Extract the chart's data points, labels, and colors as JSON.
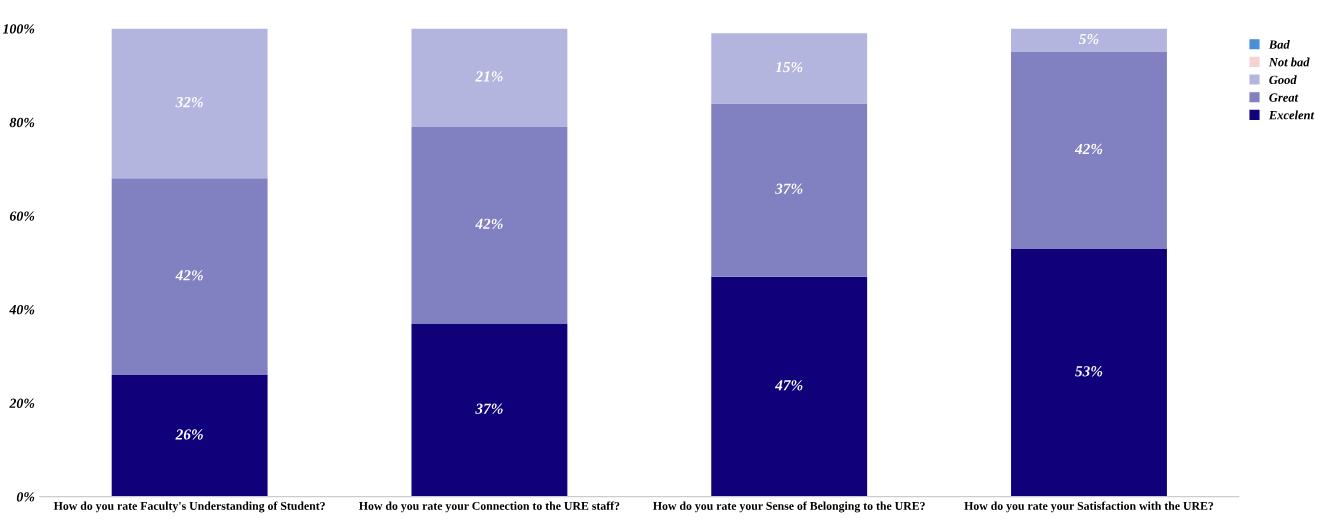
{
  "chart_data": {
    "type": "bar",
    "stacked": true,
    "categories": [
      "How do you rate Faculty's Understanding of Student?",
      "How do you rate your Connection to the URE staff?",
      "How do you rate your Sense of Belonging to the URE?",
      "How do you rate your Satisfaction with the URE?"
    ],
    "series": [
      {
        "name": "Excelent",
        "color": "#10007a",
        "values": [
          26,
          37,
          47,
          53
        ],
        "value_labels": [
          "26%",
          "37%",
          "47%",
          "53%"
        ]
      },
      {
        "name": "Great",
        "color": "#8180c0",
        "values": [
          42,
          42,
          37,
          42
        ],
        "value_labels": [
          "42%",
          "42%",
          "37%",
          "42%"
        ]
      },
      {
        "name": "Good",
        "color": "#b3b5de",
        "values": [
          32,
          21,
          15,
          5
        ],
        "value_labels": [
          "32%",
          "21%",
          "15%",
          "5%"
        ]
      },
      {
        "name": "Not bad",
        "color": "#f6d3d3",
        "values": [
          0,
          0,
          0,
          0
        ]
      },
      {
        "name": "Bad",
        "color": "#4a8fd6",
        "values": [
          0,
          0,
          0,
          0
        ]
      }
    ],
    "ylim": [
      0,
      100
    ],
    "yticks": [
      {
        "value": 0,
        "label": "0%"
      },
      {
        "value": 20,
        "label": "20%"
      },
      {
        "value": 40,
        "label": "40%"
      },
      {
        "value": 60,
        "label": "60%"
      },
      {
        "value": 80,
        "label": "80%"
      },
      {
        "value": 100,
        "label": "100%"
      }
    ],
    "grid": false,
    "legend": "top right"
  }
}
